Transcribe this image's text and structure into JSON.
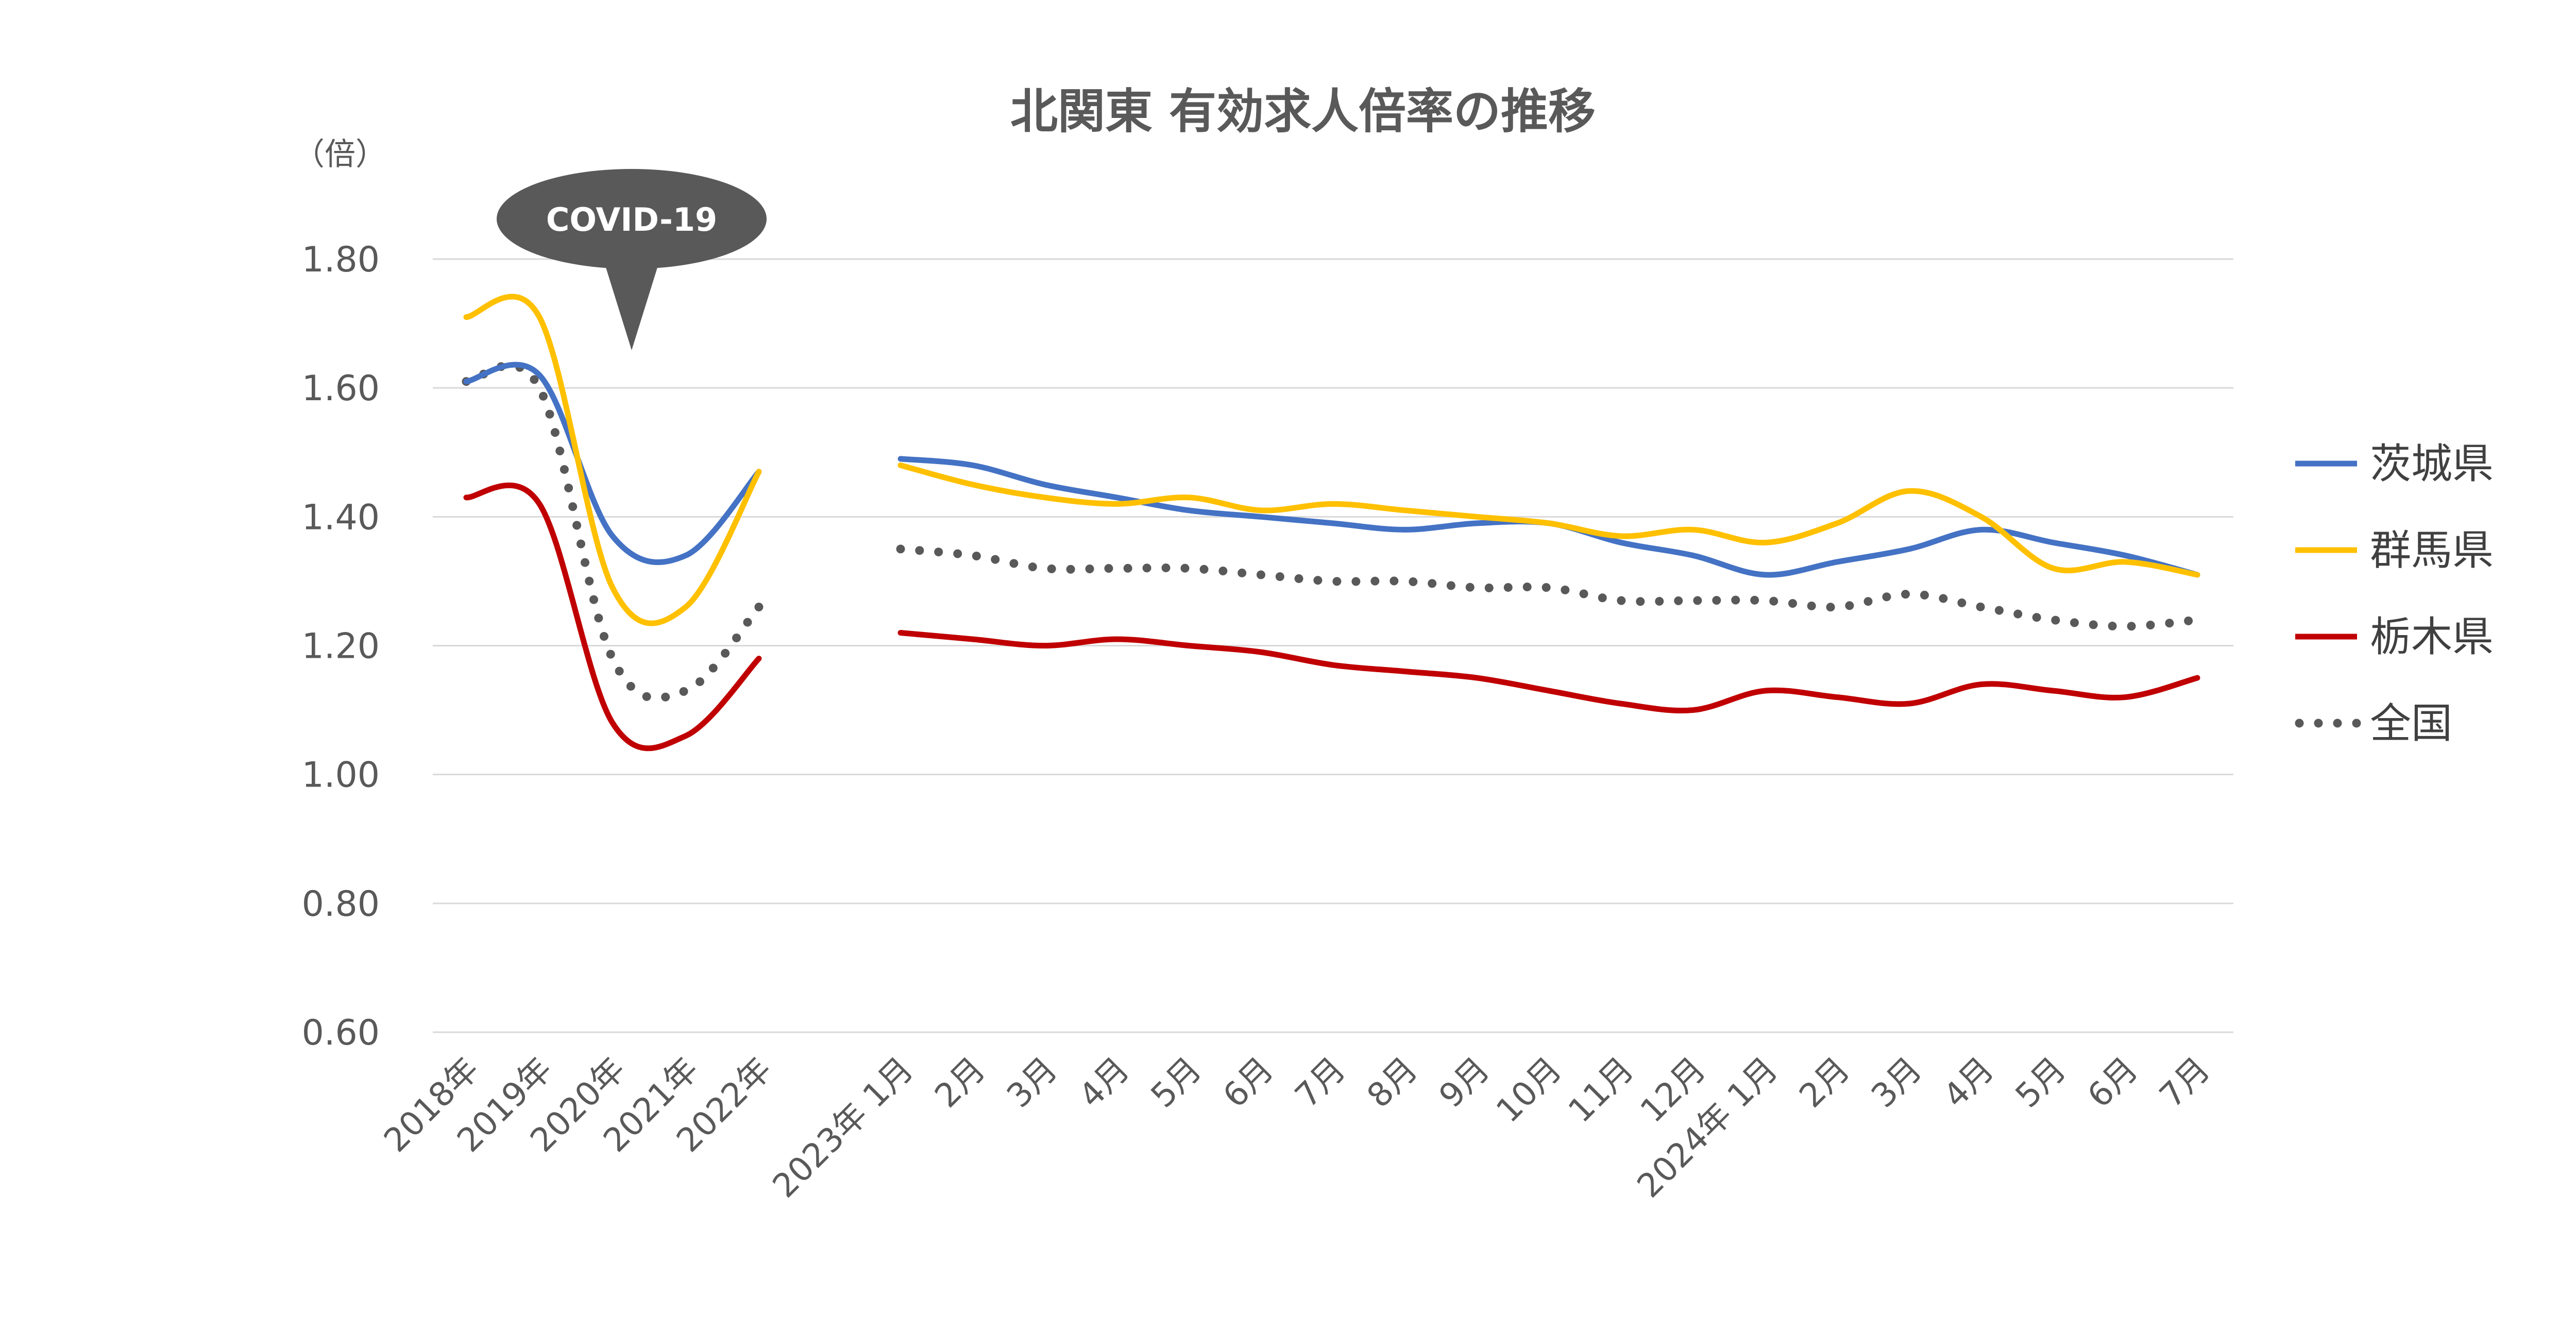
{
  "chart_data": {
    "type": "line",
    "title": "北関東 有効求人倍率の推移",
    "unit_label": "（倍）",
    "ylim": [
      0.6,
      1.8
    ],
    "yticks": [
      "1.80",
      "1.60",
      "1.40",
      "1.20",
      "1.00",
      "0.80",
      "0.60"
    ],
    "grid": true,
    "legend_position": "right",
    "annotation": "COVID-19",
    "categories": [
      "2018年",
      "2019年",
      "2020年",
      "2021年",
      "2022年",
      "2023年 1月",
      "2月",
      "3月",
      "4月",
      "5月",
      "6月",
      "7月",
      "8月",
      "9月",
      "10月",
      "11月",
      "12月",
      "2024年 1月",
      "2月",
      "3月",
      "4月",
      "5月",
      "6月",
      "7月"
    ],
    "series": [
      {
        "name": "茨城県",
        "color": "#4472C4",
        "style": "solid",
        "values": [
          1.61,
          1.62,
          1.37,
          1.34,
          1.47,
          1.49,
          1.48,
          1.45,
          1.43,
          1.41,
          1.4,
          1.39,
          1.38,
          1.39,
          1.39,
          1.36,
          1.34,
          1.31,
          1.33,
          1.35,
          1.38,
          1.36,
          1.34,
          1.31
        ]
      },
      {
        "name": "群馬県",
        "color": "#FFC000",
        "style": "solid",
        "values": [
          1.71,
          1.71,
          1.29,
          1.26,
          1.47,
          1.48,
          1.45,
          1.43,
          1.42,
          1.43,
          1.41,
          1.42,
          1.41,
          1.4,
          1.39,
          1.37,
          1.38,
          1.36,
          1.39,
          1.44,
          1.4,
          1.32,
          1.33,
          1.31
        ]
      },
      {
        "name": "栃木県",
        "color": "#C00000",
        "style": "solid",
        "values": [
          1.43,
          1.42,
          1.08,
          1.06,
          1.18,
          1.22,
          1.21,
          1.2,
          1.21,
          1.2,
          1.19,
          1.17,
          1.16,
          1.15,
          1.13,
          1.11,
          1.1,
          1.13,
          1.12,
          1.11,
          1.14,
          1.13,
          1.12,
          1.15
        ]
      },
      {
        "name": "全国",
        "color": "#595959",
        "style": "dotted",
        "values": [
          1.61,
          1.6,
          1.18,
          1.13,
          1.26,
          1.35,
          1.34,
          1.32,
          1.32,
          1.32,
          1.31,
          1.3,
          1.3,
          1.29,
          1.29,
          1.27,
          1.27,
          1.27,
          1.26,
          1.28,
          1.26,
          1.24,
          1.23,
          1.24
        ]
      }
    ]
  }
}
